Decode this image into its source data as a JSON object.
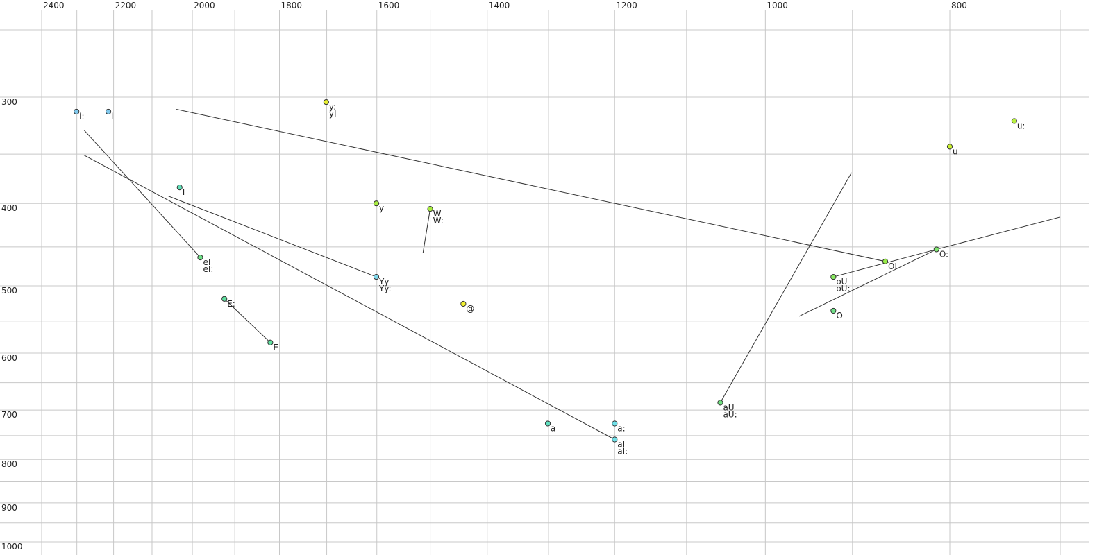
{
  "chart_data": {
    "type": "scatter",
    "x_scale": "log",
    "y_scale": "log",
    "x_reversed": true,
    "grid": true,
    "xlim": [
      2400,
      700
    ],
    "ylim": [
      250,
      1000
    ],
    "xticks": [
      2400,
      2200,
      2000,
      1800,
      1600,
      1400,
      1200,
      1000,
      800
    ],
    "xminor": [
      2300,
      2100,
      1900,
      1700,
      1500,
      1300,
      1100,
      900,
      700
    ],
    "yticks": [
      300,
      400,
      500,
      600,
      700,
      800,
      900,
      1000
    ],
    "yminor": [
      250,
      350,
      450,
      550,
      650,
      750,
      850,
      950
    ],
    "points": [
      {
        "labels": [
          "i:"
        ],
        "x": 2301,
        "y": 312,
        "color": "#80c8ec"
      },
      {
        "labels": [
          "i"
        ],
        "x": 2214,
        "y": 312,
        "color": "#80c8ec"
      },
      {
        "labels": [
          "I"
        ],
        "x": 2031,
        "y": 383,
        "color": "#60e0b8"
      },
      {
        "labels": [
          "y:",
          "yI"
        ],
        "x": 1701,
        "y": 304,
        "color": "#e8f030"
      },
      {
        "labels": [
          "y"
        ],
        "x": 1601,
        "y": 400,
        "color": "#a8ec40"
      },
      {
        "labels": [
          "W",
          "W:"
        ],
        "x": 1500,
        "y": 406,
        "color": "#a8ec40"
      },
      {
        "labels": [
          "eI",
          "eI:"
        ],
        "x": 1981,
        "y": 463,
        "color": "#70e088"
      },
      {
        "labels": [
          "E:"
        ],
        "x": 1924,
        "y": 518,
        "color": "#60e0a0"
      },
      {
        "labels": [
          "E"
        ],
        "x": 1820,
        "y": 583,
        "color": "#60e0a0"
      },
      {
        "labels": [
          "Yy",
          "Yy:"
        ],
        "x": 1601,
        "y": 488,
        "color": "#80d8ec"
      },
      {
        "labels": [
          "@-"
        ],
        "x": 1441,
        "y": 525,
        "color": "#f0f030"
      },
      {
        "labels": [
          "a"
        ],
        "x": 1301,
        "y": 726,
        "color": "#60e0c0"
      },
      {
        "labels": [
          "a:"
        ],
        "x": 1200,
        "y": 726,
        "color": "#70e0e8"
      },
      {
        "labels": [
          "aI",
          "aI:"
        ],
        "x": 1200,
        "y": 758,
        "color": "#70e0e8"
      },
      {
        "labels": [
          "aU",
          "aU:"
        ],
        "x": 1056,
        "y": 686,
        "color": "#70e080"
      },
      {
        "labels": [
          "oU",
          "oU:"
        ],
        "x": 921,
        "y": 488,
        "color": "#88e860"
      },
      {
        "labels": [
          "O"
        ],
        "x": 921,
        "y": 535,
        "color": "#70e088"
      },
      {
        "labels": [
          "OI"
        ],
        "x": 865,
        "y": 468,
        "color": "#98ec48"
      },
      {
        "labels": [
          "O:"
        ],
        "x": 813,
        "y": 453,
        "color": "#80e870"
      },
      {
        "labels": [
          "u"
        ],
        "x": 800,
        "y": 343,
        "color": "#c8f030"
      },
      {
        "labels": [
          "u:"
        ],
        "x": 740,
        "y": 320,
        "color": "#b8f040"
      }
    ],
    "segments": [
      {
        "x1": 2280,
        "y1": 328,
        "x2": 1981,
        "y2": 463
      },
      {
        "x1": 2280,
        "y1": 351,
        "x2": 1200,
        "y2": 758
      },
      {
        "x1": 2060,
        "y1": 392,
        "x2": 1601,
        "y2": 488
      },
      {
        "x1": 2039,
        "y1": 310,
        "x2": 865,
        "y2": 468
      },
      {
        "x1": 1924,
        "y1": 518,
        "x2": 1820,
        "y2": 583
      },
      {
        "x1": 1500,
        "y1": 406,
        "x2": 1513,
        "y2": 457
      },
      {
        "x1": 901,
        "y1": 368,
        "x2": 1056,
        "y2": 686
      },
      {
        "x1": 960,
        "y1": 543,
        "x2": 813,
        "y2": 453
      },
      {
        "x1": 921,
        "y1": 488,
        "x2": 813,
        "y2": 453
      },
      {
        "x1": 813,
        "y1": 453,
        "x2": 700,
        "y2": 415
      }
    ]
  }
}
